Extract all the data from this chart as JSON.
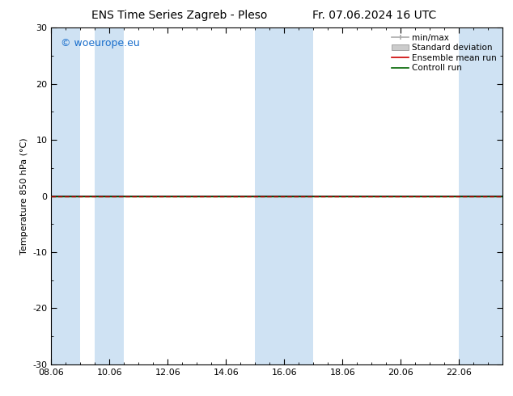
{
  "title_left": "ENS Time Series Zagreb - Pleso",
  "title_right": "Fr. 07.06.2024 16 UTC",
  "ylabel": "Temperature 850 hPa (°C)",
  "ylim": [
    -30,
    30
  ],
  "yticks": [
    -30,
    -20,
    -10,
    0,
    10,
    20,
    30
  ],
  "xtick_labels": [
    "08.06",
    "10.06",
    "12.06",
    "14.06",
    "16.06",
    "18.06",
    "20.06",
    "22.06"
  ],
  "xtick_positions": [
    0,
    2,
    4,
    6,
    8,
    10,
    12,
    14
  ],
  "xlim": [
    0,
    15.5
  ],
  "watermark": "© woeurope.eu",
  "watermark_color": "#1a6fcc",
  "bg_color": "#ffffff",
  "plot_bg_color": "#ffffff",
  "shaded_color": "#cfe2f3",
  "shade_ranges": [
    [
      0.0,
      1.0
    ],
    [
      1.5,
      2.5
    ],
    [
      7.0,
      9.0
    ],
    [
      14.0,
      15.5
    ]
  ],
  "zero_line_color": "#000000",
  "control_run_color": "#006400",
  "ensemble_mean_color": "#cc0000",
  "minmax_color": "#aaaaaa",
  "stddev_color": "#cccccc",
  "title_fontsize": 10,
  "axis_fontsize": 8,
  "tick_fontsize": 8,
  "watermark_fontsize": 9,
  "legend_fontsize": 7.5
}
